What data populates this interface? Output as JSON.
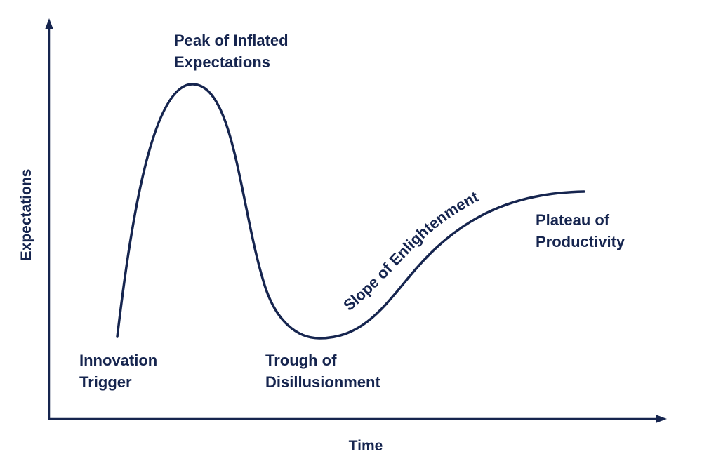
{
  "axes": {
    "x_label": "Time",
    "y_label": "Expectations"
  },
  "phases": {
    "innovation_trigger": [
      "Innovation",
      "Trigger"
    ],
    "peak": [
      "Peak of Inflated",
      "Expectations"
    ],
    "trough": [
      "Trough of",
      "Disillusionment"
    ],
    "slope": "Slope of Enlightenment",
    "plateau": [
      "Plateau of",
      "Productivity"
    ]
  },
  "colors": {
    "ink": "#16254f",
    "background": "#ffffff"
  }
}
